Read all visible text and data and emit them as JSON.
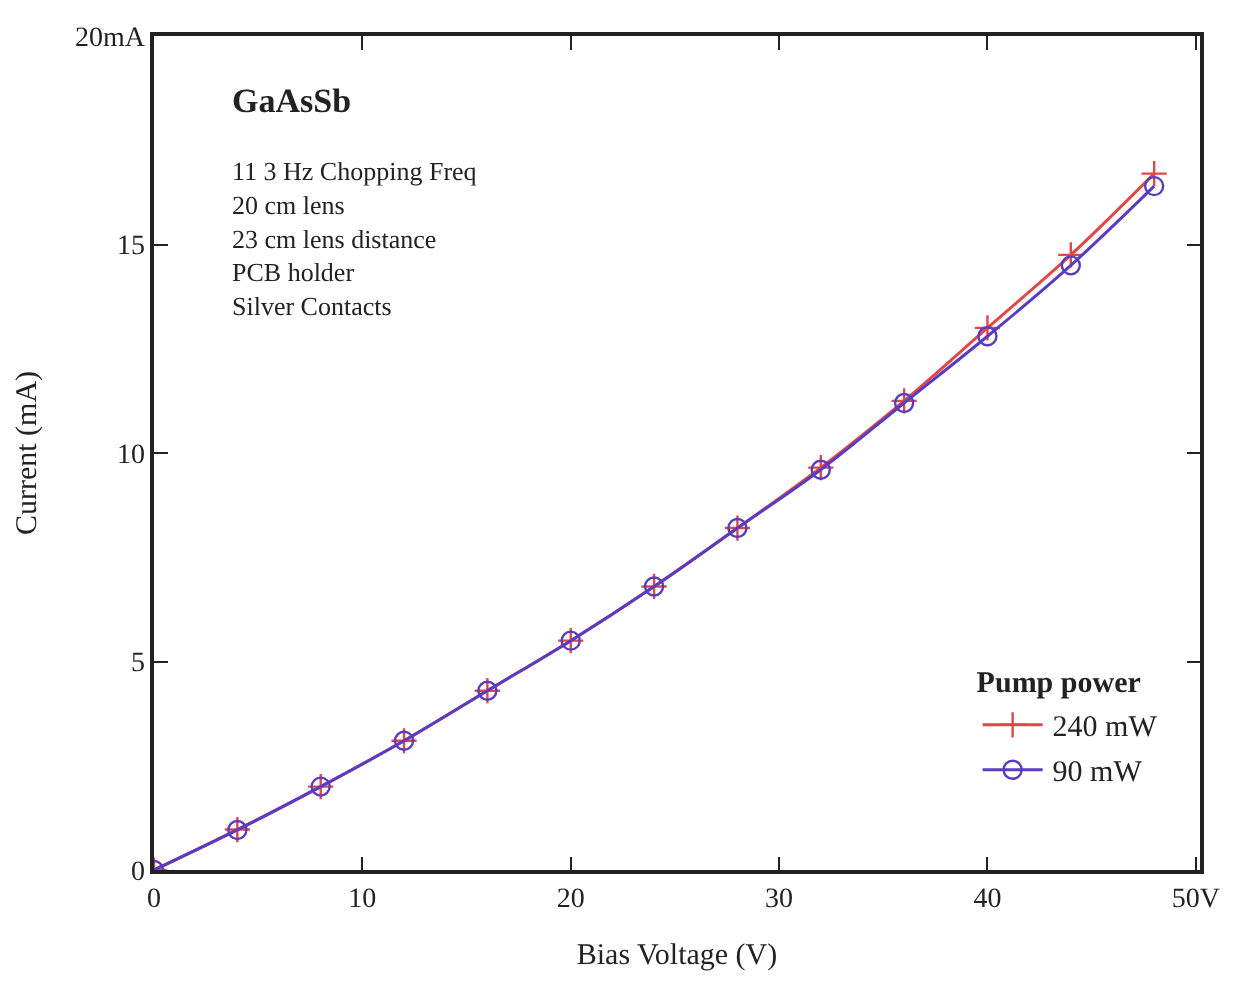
{
  "chart_data": {
    "type": "line",
    "xlabel": "Bias Voltage (V)",
    "ylabel": "Current (mA)",
    "x": [
      0,
      4,
      8,
      12,
      16,
      20,
      24,
      28,
      32,
      36,
      40,
      44,
      48
    ],
    "series": [
      {
        "name": "240 mW",
        "color": "#e04848",
        "marker": "cross",
        "values": [
          0,
          0.97,
          2.0,
          3.1,
          4.3,
          5.5,
          6.8,
          8.2,
          9.65,
          11.25,
          13.0,
          14.75,
          16.7
        ]
      },
      {
        "name": "90 mW",
        "color": "#5a3cc0",
        "marker": "circle",
        "values": [
          0,
          0.96,
          2.0,
          3.1,
          4.3,
          5.5,
          6.8,
          8.2,
          9.6,
          11.2,
          12.8,
          14.5,
          16.4
        ]
      }
    ],
    "xlim": [
      0,
      50.2
    ],
    "ylim": [
      0,
      20
    ],
    "xticks": [
      0,
      10,
      20,
      30,
      40,
      {
        "value": 50,
        "label": "50V"
      }
    ],
    "yticks": [
      0,
      5,
      10,
      15,
      {
        "value": 20,
        "label": "20mA"
      }
    ],
    "legend": "bottom right",
    "legend_title": "Pump power",
    "annotations": [
      "GaAsSb",
      "11 3 Hz Chopping Freq\n20 cm lens\n23 cm lens distance\nPCB holder\nSilver Contacts"
    ]
  }
}
